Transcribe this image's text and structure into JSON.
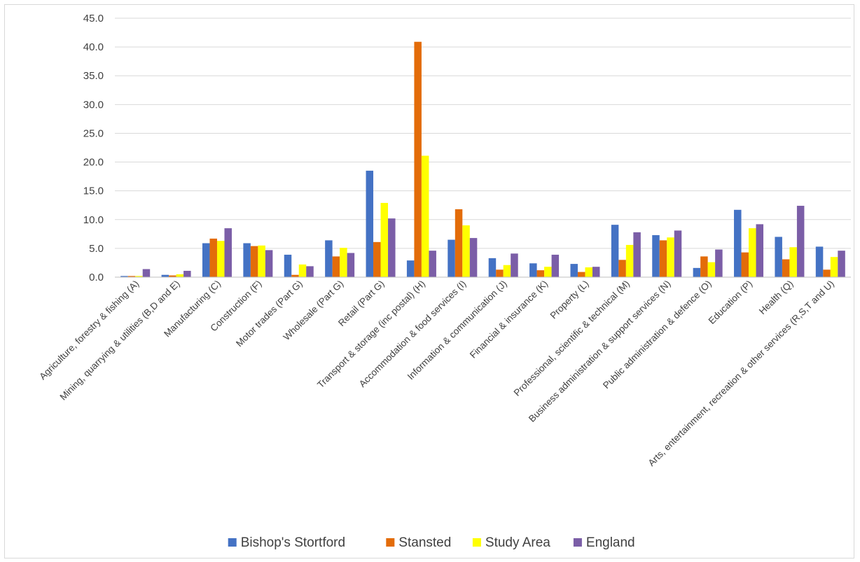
{
  "chart_data": {
    "type": "bar",
    "ylim": [
      0,
      45
    ],
    "y_ticks": [
      "0.0",
      "5.0",
      "10.0",
      "15.0",
      "20.0",
      "25.0",
      "30.0",
      "35.0",
      "40.0",
      "45.0"
    ],
    "grid": "horizontal",
    "legend": "bottom",
    "categories": [
      "Agriculture, forestry & fishing (A)",
      "Mining, quarrying & utilities (B,D and E)",
      "Manufacturing (C)",
      "Construction (F)",
      "Motor trades (Part G)",
      "Wholesale (Part G)",
      "Retail (Part G)",
      "Transport & storage (inc postal) (H)",
      "Accommodation & food services (I)",
      "Information & communication (J)",
      "Financial & insurance (K)",
      "Property (L)",
      "Professional, scientific & technical (M)",
      "Business administration & support services (N)",
      "Public administration & defence (O)",
      "Education (P)",
      "Health (Q)",
      "Arts, entertainment, recreation & other services (R,S,T and U)"
    ],
    "series": [
      {
        "name": "Bishop's Stortford",
        "color": "#4472c4",
        "values": [
          0.2,
          0.4,
          5.9,
          5.9,
          3.9,
          6.4,
          18.5,
          2.9,
          6.5,
          3.3,
          2.4,
          2.3,
          9.1,
          7.3,
          1.6,
          11.7,
          7.0,
          5.3
        ]
      },
      {
        "name": "Stansted",
        "color": "#e36c09",
        "values": [
          0.2,
          0.3,
          6.7,
          5.4,
          0.4,
          3.6,
          6.1,
          40.9,
          11.8,
          1.3,
          1.2,
          0.9,
          3.0,
          6.4,
          3.6,
          4.3,
          3.1,
          1.3
        ]
      },
      {
        "name": "Study Area",
        "color": "#ffff00",
        "values": [
          0.2,
          0.5,
          6.3,
          5.5,
          2.2,
          5.1,
          12.9,
          21.1,
          9.0,
          2.1,
          1.8,
          1.7,
          5.6,
          6.9,
          2.6,
          8.5,
          5.2,
          3.5
        ]
      },
      {
        "name": "England",
        "color": "#7b5ea7",
        "values": [
          1.4,
          1.1,
          8.5,
          4.7,
          1.9,
          4.2,
          10.2,
          4.6,
          6.8,
          4.1,
          3.9,
          1.8,
          7.8,
          8.1,
          4.8,
          9.2,
          12.4,
          4.6
        ]
      }
    ]
  }
}
